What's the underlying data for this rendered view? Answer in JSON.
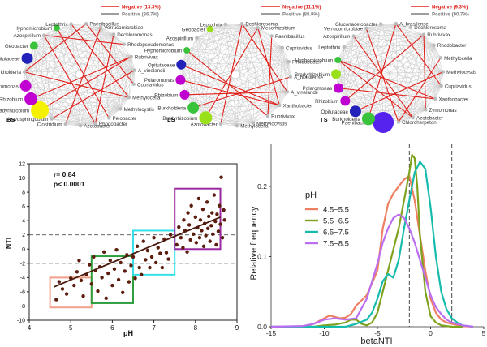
{
  "networks": [
    {
      "label": "BS",
      "legend": [
        {
          "text": "Negative (13.3%)",
          "color": "#e0201b"
        },
        {
          "text": "Positive (86.7%)",
          "color": "#7f7f7f"
        }
      ],
      "nodes": [
        {
          "name": "Paenibacillus",
          "color": "#bbbbbb",
          "r": 0
        },
        {
          "name": "Verrucomicrobiae",
          "color": "#bbbbbb",
          "r": 0
        },
        {
          "name": "Dechloromonas",
          "color": "#bbbbbb",
          "r": 0
        },
        {
          "name": "Rhodopseudomonas",
          "color": "#bbbbbb",
          "r": 0
        },
        {
          "name": "Rubrivivax",
          "color": "#bbbbbb",
          "r": 0
        },
        {
          "name": "A_vinelandii",
          "color": "#bbbbbb",
          "r": 0
        },
        {
          "name": "Cupriavidus",
          "color": "#bbbbbb",
          "r": 0
        },
        {
          "name": "Methylocella",
          "color": "#bbbbbb",
          "r": 0
        },
        {
          "name": "Methylocystis",
          "color": "#bbbbbb",
          "r": 0
        },
        {
          "name": "Pelobacter",
          "color": "#bbbbbb",
          "r": 0
        },
        {
          "name": "Rhodobacter",
          "color": "#bbbbbb",
          "r": 0
        },
        {
          "name": "Azotobacter",
          "color": "#bbbbbb",
          "r": 0
        },
        {
          "name": "Clostridium",
          "color": "#bbbbbb",
          "r": 0
        },
        {
          "name": "Novosphingobium",
          "color": "#bbbbbb",
          "r": 0
        },
        {
          "name": "Bradyrhizobium",
          "color": "#f5f000",
          "r": 11
        },
        {
          "name": "Rhizobium",
          "color": "#c000d0",
          "r": 8
        },
        {
          "name": "Polaromonas",
          "color": "#c000d0",
          "r": 7
        },
        {
          "name": "Burkholderia",
          "color": "#bbbbbb",
          "r": 0
        },
        {
          "name": "Opitutaceae",
          "color": "#2222bb",
          "r": 7
        },
        {
          "name": "Geobacter",
          "color": "#39c33a",
          "r": 5
        },
        {
          "name": "Azospirillum",
          "color": "#bbbbbb",
          "r": 0
        },
        {
          "name": "Hyphomicrobium",
          "color": "#39c33a",
          "r": 4
        },
        {
          "name": "Leptothrix",
          "color": "#bbbbbb",
          "r": 0
        }
      ]
    },
    {
      "label": "LS",
      "legend": [
        {
          "text": "Negative (11.1%)",
          "color": "#e0201b"
        },
        {
          "text": "Positive (88.9%)",
          "color": "#7f7f7f"
        }
      ],
      "nodes": [
        {
          "name": "Dechlorosoma",
          "color": "#bbbbbb",
          "r": 0
        },
        {
          "name": "Mesorhizobium",
          "color": "#bbbbbb",
          "r": 0
        },
        {
          "name": "Paenibacillus",
          "color": "#bbbbbb",
          "r": 0
        },
        {
          "name": "Cupriavidus",
          "color": "#bbbbbb",
          "r": 0
        },
        {
          "name": "Rhodobacter",
          "color": "#bbbbbb",
          "r": 0
        },
        {
          "name": "A_brasilense",
          "color": "#bbbbbb",
          "r": 0
        },
        {
          "name": "A_vinelandii",
          "color": "#bbbbbb",
          "r": 0
        },
        {
          "name": "Xanthobacter",
          "color": "#bbbbbb",
          "r": 0
        },
        {
          "name": "Rubrivivax",
          "color": "#bbbbbb",
          "r": 0
        },
        {
          "name": "Methylocystis",
          "color": "#bbbbbb",
          "r": 0
        },
        {
          "name": "Methylocella",
          "color": "#bbbbbb",
          "r": 0
        },
        {
          "name": "Azotobacter",
          "color": "#bbbbbb",
          "r": 0
        },
        {
          "name": "Bradyrhizobium",
          "color": "#99e01a",
          "r": 8
        },
        {
          "name": "Burkholderia",
          "color": "#39c33a",
          "r": 7
        },
        {
          "name": "Rhizobium",
          "color": "#c000d0",
          "r": 6
        },
        {
          "name": "Polaromonas",
          "color": "#c000d0",
          "r": 6
        },
        {
          "name": "Opitutaceae",
          "color": "#2222bb",
          "r": 6
        },
        {
          "name": "Hyphomicrobium",
          "color": "#39c33a",
          "r": 4
        },
        {
          "name": "Azospirillum",
          "color": "#bbbbbb",
          "r": 0
        },
        {
          "name": "Geobacter",
          "color": "#99e01a",
          "r": 4
        },
        {
          "name": "Leptothrix",
          "color": "#bbbbbb",
          "r": 0
        }
      ]
    },
    {
      "label": "TS",
      "legend": [
        {
          "text": "Negative (9.3%)",
          "color": "#e0201b"
        },
        {
          "text": "Positive (90.7%)",
          "color": "#7f7f7f"
        }
      ],
      "nodes": [
        {
          "name": "A_brasilense",
          "color": "#bbbbbb",
          "r": 0
        },
        {
          "name": "Dechlorosoma",
          "color": "#bbbbbb",
          "r": 0
        },
        {
          "name": "Rubrivivax",
          "color": "#bbbbbb",
          "r": 0
        },
        {
          "name": "Rhodobacter",
          "color": "#bbbbbb",
          "r": 0
        },
        {
          "name": "Methylocella",
          "color": "#bbbbbb",
          "r": 0
        },
        {
          "name": "Methylocystis",
          "color": "#bbbbbb",
          "r": 0
        },
        {
          "name": "Cupriavidus",
          "color": "#bbbbbb",
          "r": 0
        },
        {
          "name": "Xanthobacter",
          "color": "#bbbbbb",
          "r": 0
        },
        {
          "name": "Zymomonas",
          "color": "#bbbbbb",
          "r": 0
        },
        {
          "name": "Azotobacter",
          "color": "#bbbbbb",
          "r": 0
        },
        {
          "name": "Chloroherpeton",
          "color": "#bbbbbb",
          "r": 0
        },
        {
          "name": "Paenibacillus",
          "color": "#5522ee",
          "r": 13
        },
        {
          "name": "Burkholderia",
          "color": "#39c33a",
          "r": 8
        },
        {
          "name": "Opitutaceae",
          "color": "#2222bb",
          "r": 7
        },
        {
          "name": "Rhizobium",
          "color": "#c000d0",
          "r": 6
        },
        {
          "name": "Polaromonas",
          "color": "#c000d0",
          "r": 6
        },
        {
          "name": "Bradyrhizobium",
          "color": "#99e01a",
          "r": 6
        },
        {
          "name": "Hyphomicrobium",
          "color": "#39c33a",
          "r": 4
        },
        {
          "name": "Leptothrix",
          "color": "#bbbbbb",
          "r": 0
        },
        {
          "name": "Azospirillum",
          "color": "#bbbbbb",
          "r": 0
        },
        {
          "name": "Verrucomicrobiae",
          "color": "#bbbbbb",
          "r": 0
        },
        {
          "name": "Gluconacetobacter",
          "color": "#bbbbbb",
          "r": 0
        }
      ]
    }
  ],
  "chart_data": [
    {
      "type": "scatter",
      "xlabel": "pH",
      "ylabel": "NTI",
      "xlim": [
        4,
        9
      ],
      "ylim": [
        -10,
        12
      ],
      "xticks": [
        4,
        5,
        6,
        7,
        8,
        9
      ],
      "yticks": [
        -10,
        -8,
        -6,
        -4,
        -2,
        0,
        2,
        4,
        6,
        8,
        10,
        12
      ],
      "hlines": [
        2,
        -2
      ],
      "annotation": [
        "r= 0.84",
        "p< 0.0001"
      ],
      "fit_line": {
        "x": [
          4.6,
          8.6
        ],
        "y": [
          -5.3,
          4.5
        ]
      },
      "boxes": [
        {
          "x": [
            4.5,
            5.5
          ],
          "y": [
            -8.2,
            -4.0
          ],
          "color": "#f0a08a"
        },
        {
          "x": [
            5.5,
            6.5
          ],
          "y": [
            -7.6,
            -1.0
          ],
          "color": "#2e9e3e"
        },
        {
          "x": [
            6.5,
            7.5
          ],
          "y": [
            -3.6,
            2.6
          ],
          "color": "#35e0e8"
        },
        {
          "x": [
            7.5,
            8.6
          ],
          "y": [
            0.0,
            8.5
          ],
          "color": "#9a2aa0"
        }
      ],
      "points": [
        [
          4.65,
          -7.1
        ],
        [
          4.72,
          -4.6
        ],
        [
          4.8,
          -5.6
        ],
        [
          4.9,
          -6.3
        ],
        [
          5.0,
          -4.1
        ],
        [
          5.08,
          -5.1
        ],
        [
          5.15,
          -3.2
        ],
        [
          5.2,
          -1.6
        ],
        [
          5.25,
          -4.4
        ],
        [
          5.3,
          -6.6
        ],
        [
          5.38,
          -3.6
        ],
        [
          5.45,
          -2.2
        ],
        [
          5.5,
          -4.9
        ],
        [
          5.55,
          -1.1
        ],
        [
          5.6,
          -3.0
        ],
        [
          5.65,
          -5.9
        ],
        [
          5.7,
          -2.5
        ],
        [
          5.75,
          -4.0
        ],
        [
          5.8,
          -0.4
        ],
        [
          5.85,
          -6.9
        ],
        [
          5.9,
          -3.4
        ],
        [
          5.95,
          -1.6
        ],
        [
          6.0,
          -5.1
        ],
        [
          6.05,
          -2.8
        ],
        [
          6.1,
          -0.1
        ],
        [
          6.15,
          -4.3
        ],
        [
          6.2,
          -1.9
        ],
        [
          6.25,
          -6.1
        ],
        [
          6.3,
          -3.1
        ],
        [
          6.35,
          -0.8
        ],
        [
          6.4,
          -4.6
        ],
        [
          6.45,
          -2.3
        ],
        [
          6.5,
          -1.1
        ],
        [
          6.55,
          -4.1
        ],
        [
          6.6,
          0.4
        ],
        [
          6.65,
          -2.6
        ],
        [
          6.7,
          -3.6
        ],
        [
          6.75,
          1.1
        ],
        [
          6.8,
          -1.5
        ],
        [
          6.85,
          -0.2
        ],
        [
          6.9,
          -2.6
        ],
        [
          6.95,
          -1.1
        ],
        [
          7.0,
          1.6
        ],
        [
          7.05,
          -1.9
        ],
        [
          7.1,
          0.2
        ],
        [
          7.15,
          -0.6
        ],
        [
          7.2,
          -2.6
        ],
        [
          7.25,
          1.4
        ],
        [
          7.3,
          -0.5
        ],
        [
          7.35,
          -1.4
        ],
        [
          7.4,
          2.0
        ],
        [
          7.55,
          0.6
        ],
        [
          7.6,
          3.1
        ],
        [
          7.65,
          1.6
        ],
        [
          7.7,
          0.2
        ],
        [
          7.72,
          4.1
        ],
        [
          7.75,
          2.6
        ],
        [
          7.8,
          -0.4
        ],
        [
          7.82,
          5.1
        ],
        [
          7.85,
          3.4
        ],
        [
          7.88,
          1.3
        ],
        [
          7.9,
          6.1
        ],
        [
          7.95,
          2.1
        ],
        [
          8.0,
          4.5
        ],
        [
          8.02,
          0.9
        ],
        [
          8.05,
          3.0
        ],
        [
          8.08,
          7.1
        ],
        [
          8.1,
          1.6
        ],
        [
          8.12,
          4.1
        ],
        [
          8.15,
          2.6
        ],
        [
          8.18,
          5.6
        ],
        [
          8.2,
          0.4
        ],
        [
          8.22,
          3.6
        ],
        [
          8.25,
          1.9
        ],
        [
          8.28,
          6.6
        ],
        [
          8.3,
          2.9
        ],
        [
          8.32,
          4.6
        ],
        [
          8.35,
          1.1
        ],
        [
          8.38,
          3.3
        ],
        [
          8.4,
          5.1
        ],
        [
          8.42,
          2.1
        ],
        [
          8.45,
          7.6
        ],
        [
          8.48,
          3.9
        ],
        [
          8.5,
          0.6
        ],
        [
          8.52,
          4.9
        ],
        [
          8.55,
          2.5
        ],
        [
          8.58,
          6.1
        ],
        [
          8.6,
          3.5
        ],
        [
          8.62,
          10.1
        ],
        [
          8.65,
          1.6
        ],
        [
          8.68,
          5.5
        ],
        [
          8.7,
          4.1
        ]
      ]
    },
    {
      "type": "line",
      "xlabel": "betaNTI",
      "ylabel": "Relative frequency",
      "xlim": [
        -15,
        5
      ],
      "ylim": [
        0,
        0.26
      ],
      "xticks": [
        -15,
        -10,
        -5,
        0,
        5
      ],
      "yticks": [
        0.0,
        0.1,
        0.2
      ],
      "ytick_labels": [
        "0.0",
        "0.1",
        "0.2"
      ],
      "vlines": [
        -2,
        2
      ],
      "legend": {
        "title": "pH",
        "position": "left"
      },
      "series": [
        {
          "name": "4.5~5.5",
          "color": "#ee7f63",
          "x": [
            -15,
            -12,
            -11,
            -10,
            -9.5,
            -9,
            -8.5,
            -8,
            -7.5,
            -7,
            -6,
            -5,
            -4.5,
            -4,
            -3.5,
            -3,
            -2.5,
            -2,
            -1.5,
            -1,
            -0.5,
            0,
            0.5,
            1,
            1.5,
            2,
            3,
            4
          ],
          "y": [
            0,
            0,
            0.004,
            0.012,
            0.016,
            0.014,
            0.012,
            0.013,
            0.018,
            0.03,
            0.045,
            0.08,
            0.14,
            0.175,
            0.19,
            0.2,
            0.21,
            0.215,
            0.18,
            0.13,
            0.08,
            0.04,
            0.02,
            0.01,
            0.006,
            0.004,
            0.001,
            0
          ]
        },
        {
          "name": "5.5~6.5",
          "color": "#7ea21d",
          "x": [
            -15,
            -11,
            -10,
            -9,
            -8,
            -7.5,
            -7,
            -6.5,
            -6,
            -5.5,
            -5,
            -4.5,
            -4,
            -3.5,
            -3,
            -2.5,
            -2,
            -1.75,
            -1.5,
            -1.25,
            -1,
            -0.5,
            0,
            0.5,
            1,
            2,
            3
          ],
          "y": [
            0,
            0,
            0.002,
            0.003,
            0.006,
            0.01,
            0.01,
            0.004,
            0.002,
            0.006,
            0.02,
            0.05,
            0.08,
            0.11,
            0.14,
            0.18,
            0.22,
            0.245,
            0.24,
            0.2,
            0.13,
            0.05,
            0.015,
            0.006,
            0.002,
            0,
            0
          ]
        },
        {
          "name": "6.5~7.5",
          "color": "#16bcab",
          "x": [
            -15,
            -8,
            -7,
            -6,
            -5.5,
            -5,
            -4.5,
            -4,
            -3.5,
            -3,
            -2.5,
            -2,
            -1.5,
            -1,
            -0.5,
            0,
            0.5,
            1,
            1.5,
            2,
            2.5,
            3,
            4
          ],
          "y": [
            0,
            0,
            0.004,
            0.01,
            0.02,
            0.04,
            0.065,
            0.075,
            0.07,
            0.095,
            0.14,
            0.18,
            0.22,
            0.235,
            0.225,
            0.17,
            0.1,
            0.05,
            0.025,
            0.012,
            0.006,
            0.002,
            0
          ]
        },
        {
          "name": "7.5~8.5",
          "color": "#bb6ef0",
          "x": [
            -15,
            -12,
            -11,
            -10,
            -9,
            -8,
            -7,
            -6,
            -5,
            -4.5,
            -4,
            -3.5,
            -3,
            -2.5,
            -2,
            -1.5,
            -1,
            -0.5,
            0,
            0.5,
            1,
            1.5,
            2,
            3,
            4
          ],
          "y": [
            0,
            0.001,
            0.004,
            0.01,
            0.012,
            0.01,
            0.012,
            0.04,
            0.09,
            0.12,
            0.14,
            0.155,
            0.16,
            0.155,
            0.14,
            0.12,
            0.095,
            0.07,
            0.045,
            0.028,
            0.018,
            0.01,
            0.006,
            0.002,
            0
          ]
        }
      ]
    }
  ]
}
